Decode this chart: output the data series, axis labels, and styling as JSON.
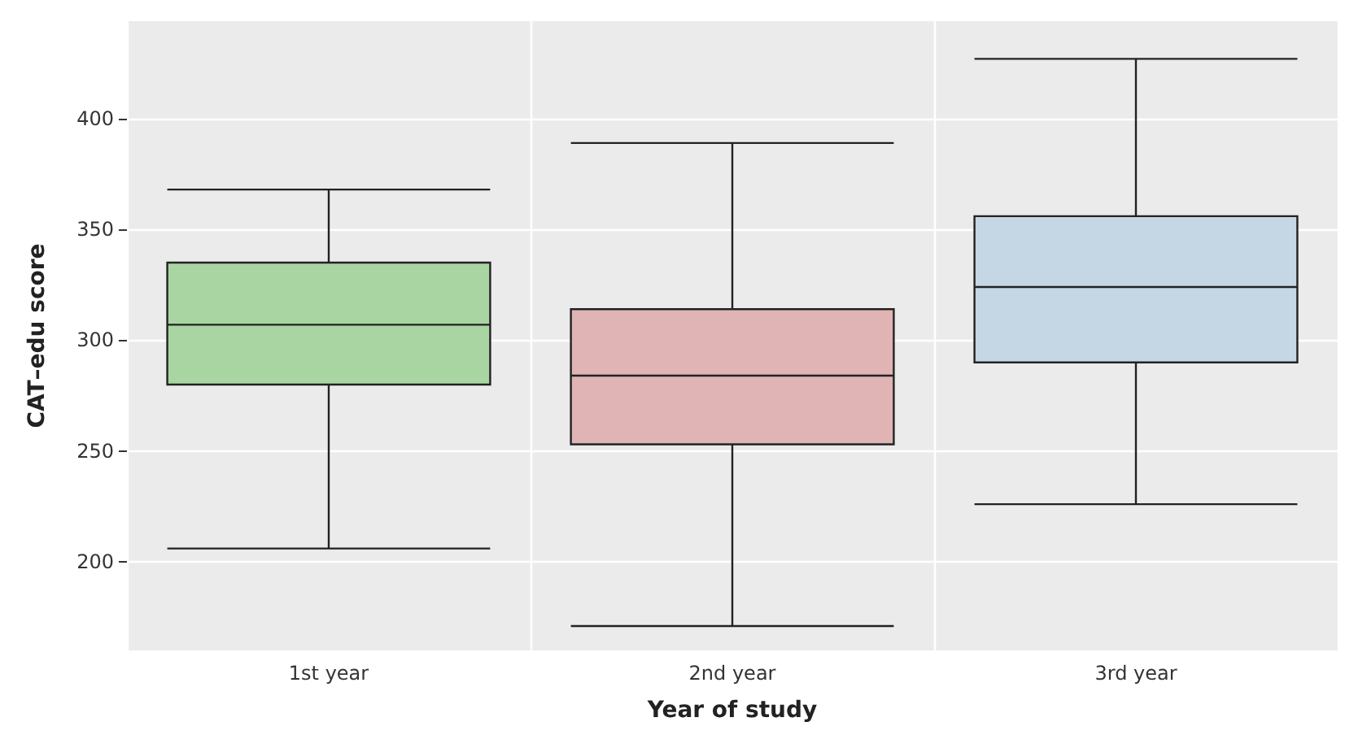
{
  "chart_data": {
    "type": "box",
    "xlabel": "Year of study",
    "ylabel": "CAT–edu score",
    "categories": [
      "1st year",
      "2nd year",
      "3rd year"
    ],
    "boxes": [
      {
        "low": 206,
        "q1": 280,
        "median": 307,
        "q3": 335,
        "high": 368
      },
      {
        "low": 171,
        "q1": 253,
        "median": 284,
        "q3": 314,
        "high": 389
      },
      {
        "low": 226,
        "q1": 290,
        "median": 324,
        "q3": 356,
        "high": 427
      }
    ],
    "colors": [
      "#a8d5a2",
      "#e0b4b4",
      "#c5d6e4"
    ],
    "ylim": [
      160,
      444
    ],
    "yticks": [
      200,
      250,
      300,
      350,
      400
    ],
    "grid": true
  }
}
